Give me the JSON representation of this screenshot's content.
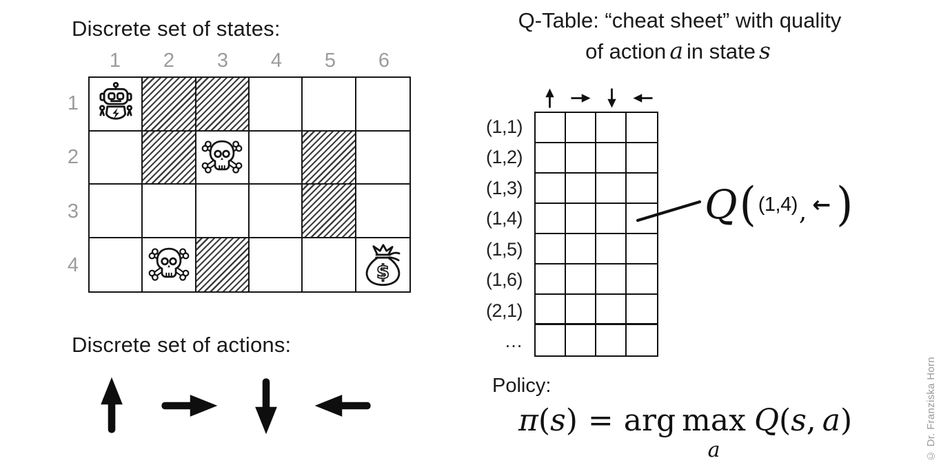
{
  "states_section": {
    "title": "Discrete set of states:",
    "col_labels": [
      "1",
      "2",
      "3",
      "4",
      "5",
      "6"
    ],
    "row_labels": [
      "1",
      "2",
      "3",
      "4"
    ],
    "grid": {
      "rows": 4,
      "cols": 6,
      "hatched_cells": [
        [
          1,
          2
        ],
        [
          1,
          3
        ],
        [
          2,
          2
        ],
        [
          2,
          5
        ],
        [
          3,
          5
        ],
        [
          4,
          3
        ]
      ],
      "icons": [
        {
          "cell": [
            1,
            1
          ],
          "icon": "robot"
        },
        {
          "cell": [
            2,
            3
          ],
          "icon": "skull"
        },
        {
          "cell": [
            4,
            2
          ],
          "icon": "skull"
        },
        {
          "cell": [
            4,
            6
          ],
          "icon": "money-bag"
        }
      ]
    }
  },
  "actions_section": {
    "title": "Discrete set of actions:",
    "actions": [
      "up",
      "right",
      "down",
      "left"
    ]
  },
  "qtable_section": {
    "title_line1": "Q-Table: “cheat sheet” with quality",
    "title_line2": {
      "prefix": "of action",
      "a": "a",
      "mid": "in state",
      "s": "s"
    },
    "column_actions": [
      "up",
      "right",
      "down",
      "left"
    ],
    "row_labels": [
      "(1,1)",
      "(1,2)",
      "(1,3)",
      "(1,4)",
      "(1,5)",
      "(1,6)",
      "(2,1)",
      "…"
    ],
    "table_rows": 8,
    "table_cols": 4,
    "callout": {
      "q": "Q",
      "open": "(",
      "state": "(1,4)",
      "comma": ",",
      "arrow": "←",
      "close": ")"
    }
  },
  "policy_section": {
    "title": "Policy:",
    "formula_parts": [
      {
        "t": "π",
        "i": true
      },
      {
        "t": "(",
        "i": false
      },
      {
        "t": "s",
        "i": true
      },
      {
        "t": ")",
        "i": false
      },
      {
        "t": "=",
        "cls": "eq"
      },
      {
        "t": "arg",
        "cls": "arg"
      },
      {
        "t": "max",
        "sub": "a"
      },
      {
        "t": "Q",
        "i": true
      },
      {
        "t": "(",
        "i": false
      },
      {
        "t": "s",
        "i": true
      },
      {
        "t": ",",
        "i": false
      },
      {
        "t": "a",
        "i": true,
        "cls": "pad-l"
      },
      {
        "t": ")",
        "i": false
      }
    ]
  },
  "footer": {
    "copyright": "© Dr. Franziska Horn"
  },
  "colors": {
    "ink": "#161616",
    "muted": "#9b9b9b",
    "background": "#ffffff"
  }
}
